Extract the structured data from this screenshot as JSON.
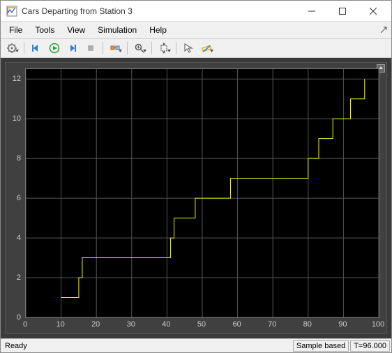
{
  "window": {
    "title": "Cars Departing from Station 3"
  },
  "menu": {
    "items": [
      "File",
      "Tools",
      "View",
      "Simulation",
      "Help"
    ]
  },
  "chart": {
    "type": "step-line",
    "background_color": "#000000",
    "grid_color": "#555555",
    "line_color": "#f0f020",
    "axis_label_color": "#cccccc",
    "outer_bg": "#404040",
    "xlim": [
      0,
      100
    ],
    "ylim": [
      0,
      12.5
    ],
    "xticks": [
      0,
      10,
      20,
      30,
      40,
      50,
      60,
      70,
      80,
      90,
      100
    ],
    "yticks": [
      0,
      2,
      4,
      6,
      8,
      10,
      12
    ],
    "data_x": [
      10,
      15,
      16,
      32,
      41,
      42,
      43,
      48,
      58,
      60,
      80,
      83,
      87,
      92,
      95,
      96
    ],
    "data_y": [
      1,
      2,
      3,
      3,
      4,
      5,
      5,
      6,
      7,
      7,
      8,
      9,
      10,
      11,
      11,
      12
    ]
  },
  "status": {
    "ready": "Ready",
    "mode": "Sample based",
    "time": "T=96.000"
  }
}
